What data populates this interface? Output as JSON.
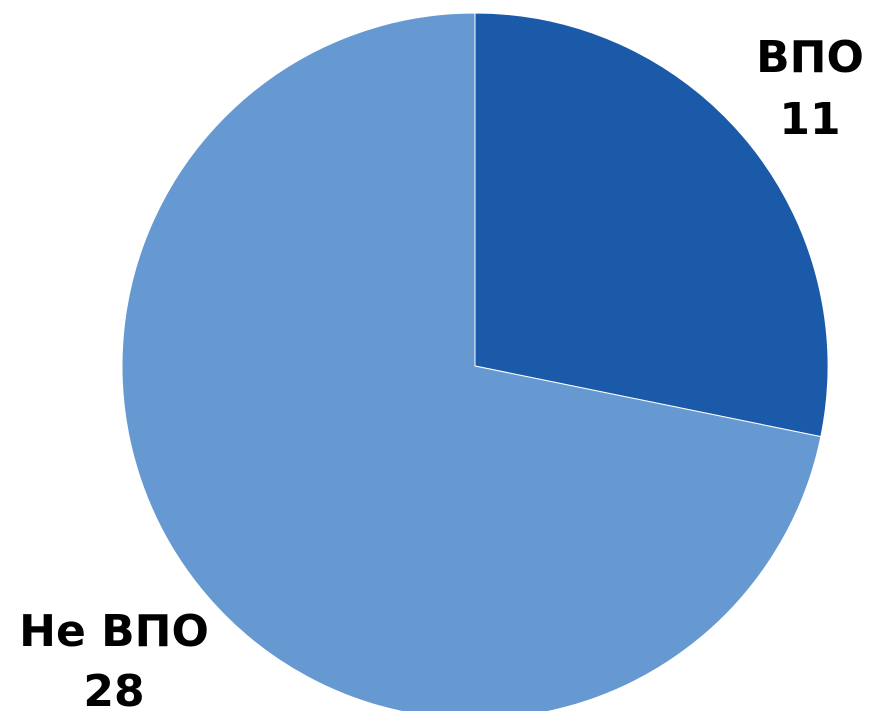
{
  "chart_data": {
    "type": "pie",
    "title": "",
    "slices": [
      {
        "label": "ВПО",
        "value": 11,
        "value_label": "11",
        "color": "#1a5aa8"
      },
      {
        "label": "Не ВПО",
        "value": 28,
        "value_label": "28",
        "color": "#6699d1"
      }
    ],
    "start_angle_deg": 0,
    "direction": "clockwise",
    "legend": "none",
    "data_labels": "outside"
  }
}
